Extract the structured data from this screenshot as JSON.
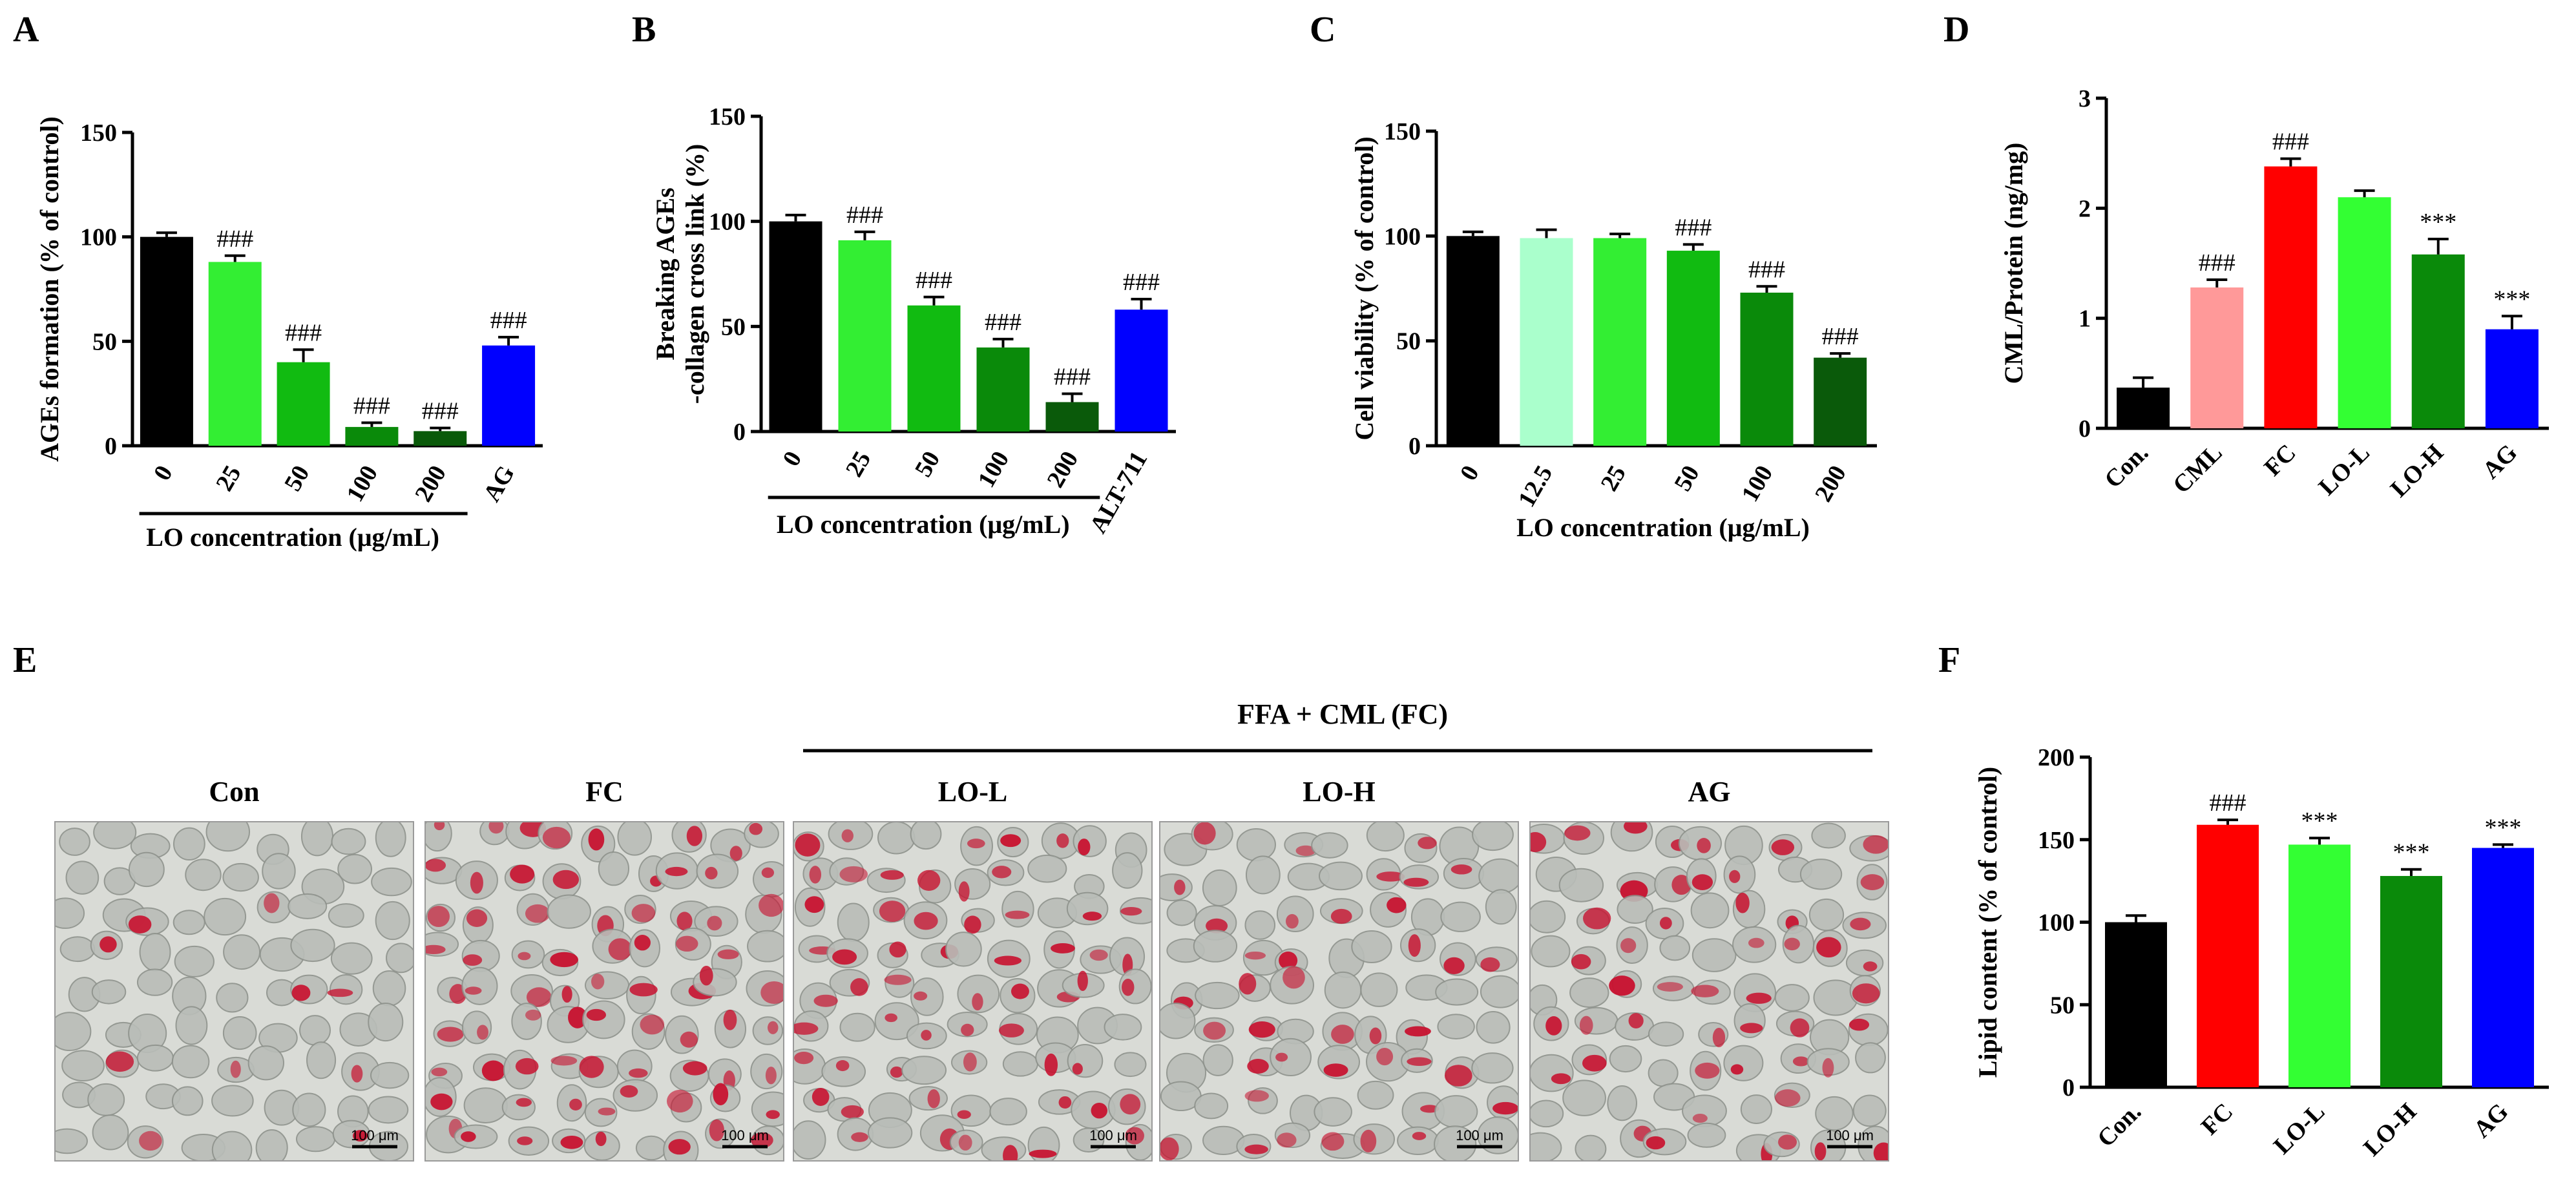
{
  "chart_data": [
    {
      "panel": "A",
      "type": "bar",
      "ylabel": "AGEs formation (% of control)",
      "xlabel": "LO concentration (μg/mL)",
      "categories": [
        "0",
        "25",
        "50",
        "100",
        "200",
        "AG"
      ],
      "values": [
        100,
        88,
        40,
        9,
        7,
        48
      ],
      "errors": [
        2,
        3,
        6,
        2,
        1.5,
        4
      ],
      "annotations": [
        "",
        "###",
        "###",
        "###",
        "###",
        "###"
      ],
      "colors": [
        "#000000",
        "#33ee33",
        "#11bb11",
        "#0a8a0a",
        "#0a5a0a",
        "#0000ff"
      ],
      "ylim": [
        0,
        150
      ],
      "yticks": [
        0,
        50,
        100,
        150
      ],
      "underline_span": [
        0,
        4
      ]
    },
    {
      "panel": "B",
      "type": "bar",
      "ylabel": "Breaking AGEs\n-collagen cross link (%)",
      "xlabel": "LO concentration (μg/mL)",
      "categories": [
        "0",
        "25",
        "50",
        "100",
        "200",
        "ALT-711"
      ],
      "values": [
        100,
        91,
        60,
        40,
        14,
        58
      ],
      "errors": [
        3,
        4,
        4,
        4,
        4,
        5
      ],
      "annotations": [
        "",
        "###",
        "###",
        "###",
        "###",
        "###"
      ],
      "colors": [
        "#000000",
        "#33ee33",
        "#11bb11",
        "#0a8a0a",
        "#0a5a0a",
        "#0000ff"
      ],
      "ylim": [
        0,
        150
      ],
      "yticks": [
        0,
        50,
        100,
        150
      ],
      "underline_span": [
        0,
        4
      ]
    },
    {
      "panel": "C",
      "type": "bar",
      "ylabel": "Cell viability (% of control)",
      "xlabel": "LO concentration (μg/mL)",
      "categories": [
        "0",
        "12.5",
        "25",
        "50",
        "100",
        "200"
      ],
      "values": [
        100,
        99,
        99,
        93,
        73,
        42
      ],
      "errors": [
        2,
        4,
        2,
        3,
        3,
        2
      ],
      "annotations": [
        "",
        "",
        "",
        "###",
        "###",
        "###"
      ],
      "colors": [
        "#000000",
        "#aaffcc",
        "#33ee33",
        "#11bb11",
        "#0a8a0a",
        "#0a5a0a"
      ],
      "ylim": [
        0,
        150
      ],
      "yticks": [
        0,
        50,
        100,
        150
      ]
    },
    {
      "panel": "D",
      "type": "bar",
      "ylabel": "CML/Protein (ng/mg)",
      "xlabel": "",
      "categories": [
        "Con.",
        "CML",
        "FC",
        "LO-L",
        "LO-H",
        "AG"
      ],
      "values": [
        0.37,
        1.28,
        2.38,
        2.1,
        1.58,
        0.9
      ],
      "errors": [
        0.09,
        0.07,
        0.07,
        0.06,
        0.14,
        0.12
      ],
      "annotations": [
        "",
        "###",
        "###",
        "",
        "***",
        "***"
      ],
      "colors": [
        "#000000",
        "#ff9999",
        "#ff0000",
        "#33ff33",
        "#0a8a0a",
        "#0000ff"
      ],
      "ylim": [
        0,
        3
      ],
      "yticks": [
        0,
        1,
        2,
        3
      ]
    },
    {
      "panel": "F",
      "type": "bar",
      "ylabel": "Lipid content (% of control)",
      "xlabel": "",
      "categories": [
        "Con.",
        "FC",
        "LO-L",
        "LO-H",
        "AG"
      ],
      "values": [
        100,
        159,
        147,
        128,
        145
      ],
      "errors": [
        4,
        3,
        4,
        4,
        2
      ],
      "annotations": [
        "",
        "###",
        "***",
        "***",
        "***"
      ],
      "colors": [
        "#000000",
        "#ff0000",
        "#33ff33",
        "#0a8a0a",
        "#0000ff"
      ],
      "ylim": [
        0,
        200
      ],
      "yticks": [
        0,
        50,
        100,
        150,
        200
      ]
    }
  ],
  "micrographs": {
    "panel": "E",
    "group_label": "FFA + CML (FC)",
    "scale_bar_label": "100 μm",
    "images": [
      {
        "label": "Con",
        "stain": 0.08
      },
      {
        "label": "FC",
        "stain": 0.95
      },
      {
        "label": "LO-L",
        "stain": 0.72
      },
      {
        "label": "LO-H",
        "stain": 0.45
      },
      {
        "label": "AG",
        "stain": 0.6
      }
    ]
  },
  "colors": {
    "stain": "#c8102e",
    "cells": "#b9bdb8",
    "background": "#d9dbd6"
  }
}
